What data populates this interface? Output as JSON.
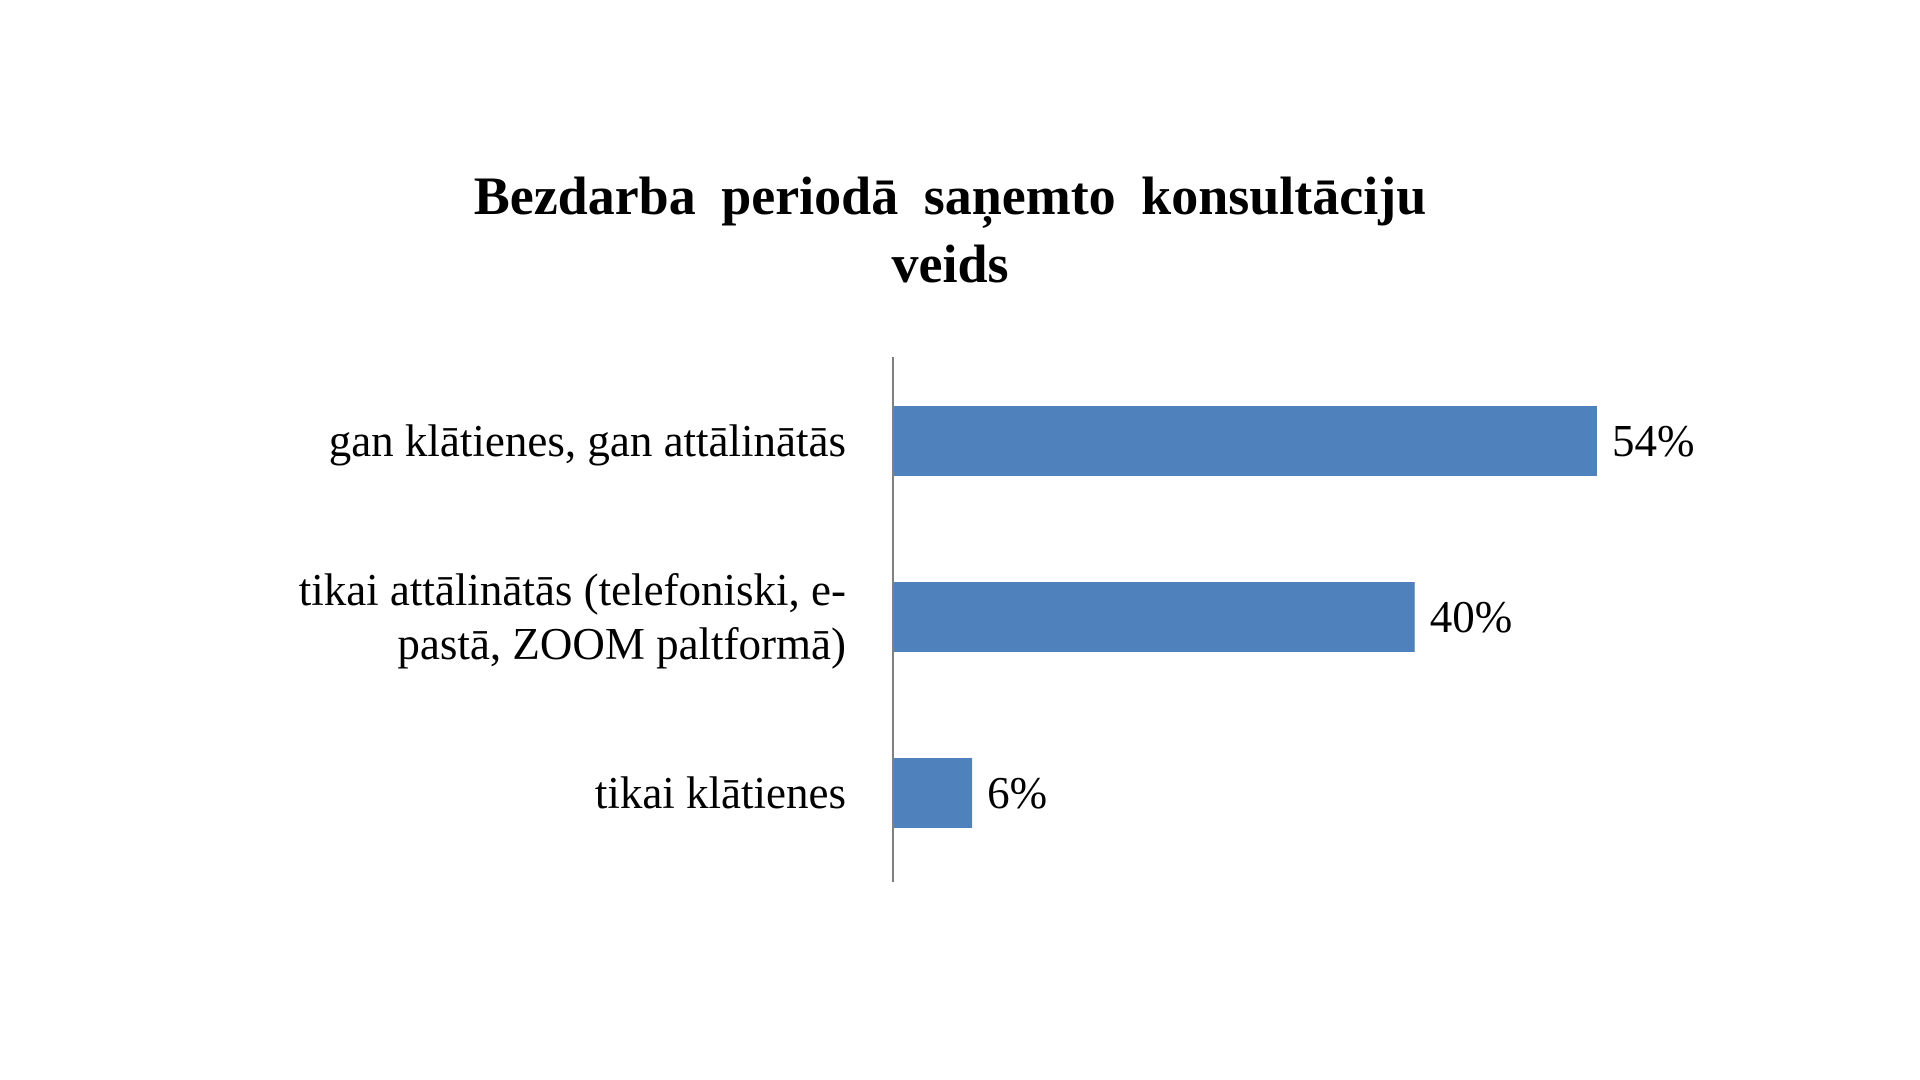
{
  "chart_data": {
    "type": "bar",
    "orientation": "horizontal",
    "title": "Bezdarba periodā saņemto konsultāciju veids",
    "categories": [
      "gan klātienes, gan attālinātās",
      "tikai attālinātās (telefoniski, e-pastā, ZOOM paltformā)",
      "tikai klātienes"
    ],
    "values": [
      54,
      40,
      6
    ],
    "data_labels": [
      "54%",
      "40%",
      "6%"
    ],
    "unit": "%",
    "xlim": [
      0,
      100
    ],
    "grid": false,
    "legend": "none",
    "bar_color": "#4F81BD",
    "axis_color": "#808080"
  }
}
